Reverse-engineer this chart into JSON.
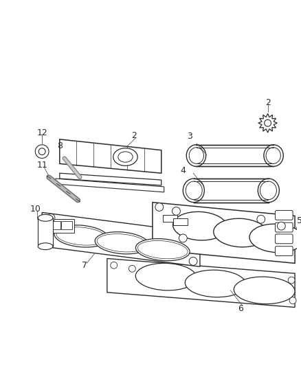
{
  "background_color": "#ffffff",
  "line_color": "#2a2a2a",
  "label_color": "#2a2a2a",
  "fig_width": 4.38,
  "fig_height": 5.33,
  "dpi": 100
}
